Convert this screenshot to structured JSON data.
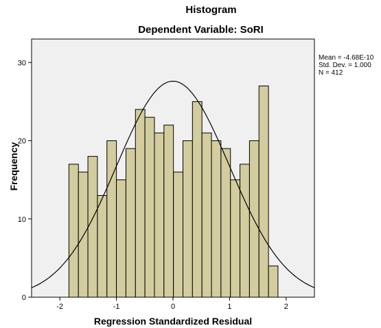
{
  "chart_data": {
    "type": "bar",
    "title": "Histogram",
    "subtitle": "Dependent Variable: SoRI",
    "xlabel": "Regression Standardized Residual",
    "ylabel": "Frequency",
    "xlim": [
      -2.5,
      2.5
    ],
    "ylim": [
      0,
      33
    ],
    "x_ticks": [
      -2,
      -1,
      0,
      1,
      2
    ],
    "y_ticks": [
      0,
      10,
      20,
      30
    ],
    "bin_start": -1.84,
    "bin_width": 0.168,
    "values": [
      17,
      16,
      18,
      13,
      20,
      15,
      19,
      24,
      23,
      21,
      22,
      16,
      20,
      25,
      21,
      20,
      19,
      15,
      17,
      20,
      27,
      4
    ],
    "stats": {
      "mean": "Mean = -4.68E-10",
      "sd": "Std. Dev. = 1.000",
      "n": "N = 412"
    },
    "normal_curve": {
      "mean": 0,
      "sd": 1.0,
      "n": 412
    },
    "colors": {
      "bar_fill": "#d2cc9e",
      "bar_stroke": "#000000",
      "plot_bg": "#f0f0f0",
      "curve": "#000000"
    },
    "grid": false,
    "legend": "top-right"
  }
}
